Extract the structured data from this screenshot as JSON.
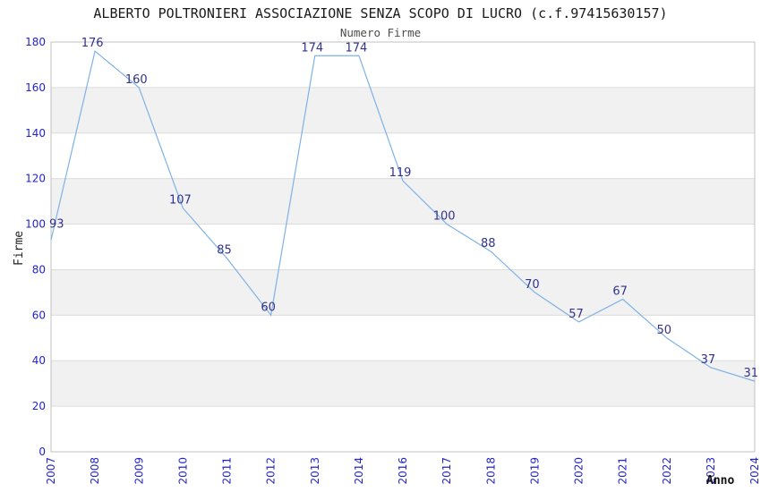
{
  "header": {
    "title": "ALBERTO POLTRONIERI ASSOCIAZIONE SENZA SCOPO DI LUCRO (c.f.97415630157)",
    "subtitle": "Numero Firme"
  },
  "chart_data": {
    "type": "line",
    "title": "ALBERTO POLTRONIERI ASSOCIAZIONE SENZA SCOPO DI LUCRO (c.f.97415630157)",
    "subtitle": "Numero Firme",
    "xlabel": "Anno",
    "ylabel": "Firme",
    "categories": [
      "2007",
      "2008",
      "2009",
      "2010",
      "2011",
      "2012",
      "2013",
      "2014",
      "2016",
      "2017",
      "2018",
      "2019",
      "2020",
      "2021",
      "2022",
      "2023",
      "2024"
    ],
    "values": [
      93,
      176,
      160,
      107,
      85,
      60,
      174,
      174,
      119,
      100,
      88,
      70,
      57,
      67,
      50,
      37,
      31
    ],
    "ylim": [
      0,
      180
    ],
    "ytick_step": 20,
    "yticks": [
      0,
      20,
      40,
      60,
      80,
      100,
      120,
      140,
      160,
      180
    ],
    "grid": true,
    "legend_position": "none",
    "alternating_bands": true,
    "data_labels_visible": true,
    "colors": {
      "line": "#7fb2e5",
      "tick_label": "#2323cc",
      "data_label": "#32328c",
      "band": "#f1f1f1",
      "gridline": "#dcdcdc",
      "plot_border": "#c0c0c0",
      "title": "#1a1a1a",
      "subtitle": "#4d4d4d",
      "axis_title": "#222222",
      "background": "#ffffff"
    }
  }
}
